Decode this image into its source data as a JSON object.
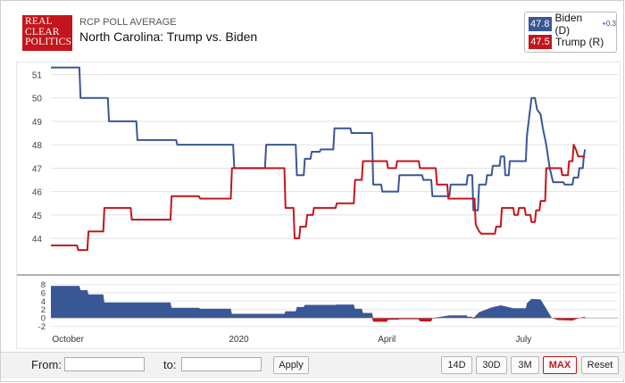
{
  "header": {
    "logo_lines": [
      "REAL",
      "CLEAR",
      "POLITICS"
    ],
    "subtitle": "RCP POLL AVERAGE",
    "title": "North Carolina: Trump vs. Biden"
  },
  "legend": [
    {
      "value": "47.8",
      "name": "Biden (D)",
      "change": "+0.3",
      "color": "#3a5795"
    },
    {
      "value": "47.5",
      "name": "Trump (R)",
      "change": "",
      "color": "#c4151c"
    }
  ],
  "controls": {
    "from_label": "From:",
    "to_label": "to:",
    "apply_label": "Apply",
    "ranges": [
      "14D",
      "30D",
      "3M",
      "MAX",
      "Reset"
    ],
    "active_range": "MAX"
  },
  "chart_data": {
    "type": "line",
    "title": "North Carolina: Trump vs. Biden",
    "x_unit": "weeks from start of data (early Oct 2019)",
    "x_range": [
      0,
      49
    ],
    "ylim": [
      43.2,
      51.4
    ],
    "yticks": [
      44,
      45,
      46,
      47,
      48,
      49,
      50,
      51
    ],
    "xticks": [
      {
        "label": "October",
        "x": 1.5
      },
      {
        "label": "2020",
        "x": 16.5
      },
      {
        "label": "April",
        "x": 29.5
      },
      {
        "label": "July",
        "x": 41.5
      }
    ],
    "series": [
      {
        "name": "Biden (D)",
        "color": "#3a5795",
        "points": [
          [
            0,
            51.3
          ],
          [
            2.5,
            51.3
          ],
          [
            2.6,
            50
          ],
          [
            5,
            50
          ],
          [
            5.1,
            49
          ],
          [
            7.5,
            49
          ],
          [
            7.6,
            48.2
          ],
          [
            11,
            48.2
          ],
          [
            11.1,
            48
          ],
          [
            16,
            48
          ],
          [
            16.1,
            47
          ],
          [
            18.8,
            47
          ],
          [
            18.9,
            48
          ],
          [
            21.5,
            48
          ],
          [
            21.6,
            46.7
          ],
          [
            22.2,
            46.7
          ],
          [
            22.3,
            47.4
          ],
          [
            22.8,
            47.4
          ],
          [
            22.9,
            47.7
          ],
          [
            23.6,
            47.7
          ],
          [
            23.7,
            47.8
          ],
          [
            24.8,
            47.8
          ],
          [
            24.9,
            48.7
          ],
          [
            26.3,
            48.7
          ],
          [
            26.4,
            48.5
          ],
          [
            28.2,
            48.5
          ],
          [
            28.3,
            46.3
          ],
          [
            29,
            46.3
          ],
          [
            29.1,
            46
          ],
          [
            30.5,
            46
          ],
          [
            30.6,
            46.7
          ],
          [
            32.6,
            46.7
          ],
          [
            32.7,
            46.5
          ],
          [
            33.4,
            46.5
          ],
          [
            33.5,
            45.8
          ],
          [
            35,
            45.8
          ],
          [
            35.1,
            46.3
          ],
          [
            36.5,
            46.3
          ],
          [
            36.6,
            46.7
          ],
          [
            37,
            46.7
          ],
          [
            37.1,
            45.2
          ],
          [
            37.5,
            45.2
          ],
          [
            37.6,
            46.3
          ],
          [
            38.2,
            46.3
          ],
          [
            38.3,
            46.7
          ],
          [
            38.7,
            46.7
          ],
          [
            38.8,
            47.1
          ],
          [
            39.4,
            47.1
          ],
          [
            39.5,
            47.5
          ],
          [
            39.8,
            47.5
          ],
          [
            39.9,
            46.7
          ],
          [
            40.2,
            46.7
          ],
          [
            40.3,
            47.3
          ],
          [
            41.7,
            47.3
          ],
          [
            41.8,
            48.4
          ],
          [
            42.2,
            50
          ],
          [
            42.5,
            50
          ],
          [
            42.7,
            49.5
          ],
          [
            43,
            49.3
          ],
          [
            43.2,
            48.7
          ],
          [
            43.5,
            48
          ],
          [
            43.8,
            47
          ],
          [
            44.1,
            46.4
          ],
          [
            45,
            46.4
          ],
          [
            45.1,
            46.3
          ],
          [
            45.8,
            46.3
          ],
          [
            45.9,
            46.6
          ],
          [
            46.3,
            46.6
          ],
          [
            46.4,
            47
          ],
          [
            46.7,
            47
          ],
          [
            46.8,
            47.5
          ],
          [
            46.9,
            47.8
          ]
        ]
      },
      {
        "name": "Trump (R)",
        "color": "#c4151c",
        "points": [
          [
            0,
            43.7
          ],
          [
            2.3,
            43.7
          ],
          [
            2.4,
            43.5
          ],
          [
            3.2,
            43.5
          ],
          [
            3.3,
            44.3
          ],
          [
            4.6,
            44.3
          ],
          [
            4.7,
            45.3
          ],
          [
            7,
            45.3
          ],
          [
            7.1,
            44.8
          ],
          [
            10.5,
            44.8
          ],
          [
            10.6,
            45.8
          ],
          [
            13,
            45.8
          ],
          [
            13.1,
            45.7
          ],
          [
            15.8,
            45.7
          ],
          [
            15.9,
            47
          ],
          [
            20.5,
            47
          ],
          [
            20.6,
            45.3
          ],
          [
            21.3,
            45.3
          ],
          [
            21.4,
            44
          ],
          [
            21.8,
            44
          ],
          [
            21.9,
            44.5
          ],
          [
            22.4,
            44.5
          ],
          [
            22.5,
            45
          ],
          [
            23,
            45
          ],
          [
            23.1,
            45.3
          ],
          [
            25,
            45.3
          ],
          [
            25.1,
            45.5
          ],
          [
            26.6,
            45.5
          ],
          [
            26.7,
            46.5
          ],
          [
            27.3,
            46.5
          ],
          [
            27.4,
            47.3
          ],
          [
            29.5,
            47.3
          ],
          [
            29.6,
            47
          ],
          [
            30.3,
            47
          ],
          [
            30.4,
            47.3
          ],
          [
            32.3,
            47.3
          ],
          [
            32.4,
            47
          ],
          [
            33.8,
            47
          ],
          [
            33.9,
            46.3
          ],
          [
            34.8,
            46.3
          ],
          [
            34.9,
            45.7
          ],
          [
            37.2,
            45.7
          ],
          [
            37.3,
            44.6
          ],
          [
            37.6,
            44.3
          ],
          [
            37.8,
            44.2
          ],
          [
            39,
            44.2
          ],
          [
            39.1,
            44.5
          ],
          [
            39.5,
            44.5
          ],
          [
            39.6,
            45.3
          ],
          [
            40.6,
            45.3
          ],
          [
            40.7,
            45
          ],
          [
            41,
            45
          ],
          [
            41.1,
            45.3
          ],
          [
            41.6,
            45.3
          ],
          [
            41.7,
            45
          ],
          [
            42.1,
            45
          ],
          [
            42.2,
            44.7
          ],
          [
            42.5,
            44.7
          ],
          [
            42.6,
            45.2
          ],
          [
            42.9,
            45.2
          ],
          [
            43,
            45.6
          ],
          [
            43.4,
            45.6
          ],
          [
            43.5,
            47
          ],
          [
            44.8,
            47
          ],
          [
            44.9,
            46.7
          ],
          [
            45.4,
            46.7
          ],
          [
            45.5,
            47.3
          ],
          [
            45.8,
            47.3
          ],
          [
            45.9,
            48
          ],
          [
            46.1,
            47.8
          ],
          [
            46.3,
            47.5
          ],
          [
            46.9,
            47.5
          ]
        ]
      }
    ],
    "spread_ylim": [
      -2.5,
      8.5
    ],
    "spread_yticks": [
      8,
      6,
      4,
      2,
      0,
      -2
    ],
    "spread_points": [
      [
        0,
        7.6
      ],
      [
        2.5,
        7.6
      ],
      [
        2.6,
        6.6
      ],
      [
        3.2,
        6.6
      ],
      [
        3.3,
        5.6
      ],
      [
        4.6,
        5.6
      ],
      [
        4.7,
        3.7
      ],
      [
        10.5,
        3.7
      ],
      [
        10.6,
        2.4
      ],
      [
        13,
        2.4
      ],
      [
        13.1,
        2.2
      ],
      [
        15.8,
        2.2
      ],
      [
        15.9,
        1
      ],
      [
        20.5,
        1
      ],
      [
        20.6,
        1.6
      ],
      [
        21.5,
        1.6
      ],
      [
        21.6,
        2.6
      ],
      [
        22.2,
        2.6
      ],
      [
        22.3,
        3.1
      ],
      [
        25,
        3.1
      ],
      [
        25.1,
        3.2
      ],
      [
        26.6,
        3.2
      ],
      [
        26.7,
        2.2
      ],
      [
        27.3,
        2.2
      ],
      [
        27.4,
        1.2
      ],
      [
        28.2,
        1.2
      ],
      [
        28.3,
        -0.9
      ],
      [
        29.5,
        -0.9
      ],
      [
        29.6,
        -0.4
      ],
      [
        30.5,
        -0.4
      ],
      [
        30.6,
        -0.3
      ],
      [
        32.3,
        -0.3
      ],
      [
        32.4,
        -0.8
      ],
      [
        33.4,
        -0.8
      ],
      [
        33.5,
        -0.1
      ],
      [
        35,
        0.6
      ],
      [
        36.5,
        0.6
      ],
      [
        36.6,
        0.3
      ],
      [
        37,
        0.3
      ],
      [
        37.1,
        -0.2
      ],
      [
        37.6,
        1.4
      ],
      [
        38.7,
        2.5
      ],
      [
        39.5,
        3
      ],
      [
        40.6,
        2.3
      ],
      [
        41.7,
        2.3
      ],
      [
        41.8,
        3.5
      ],
      [
        42.2,
        4.5
      ],
      [
        43,
        4.4
      ],
      [
        43.5,
        2.2
      ],
      [
        44,
        0
      ],
      [
        44.5,
        -0.5
      ],
      [
        45.8,
        -0.6
      ],
      [
        46.3,
        -0.1
      ],
      [
        46.9,
        0.3
      ]
    ]
  }
}
